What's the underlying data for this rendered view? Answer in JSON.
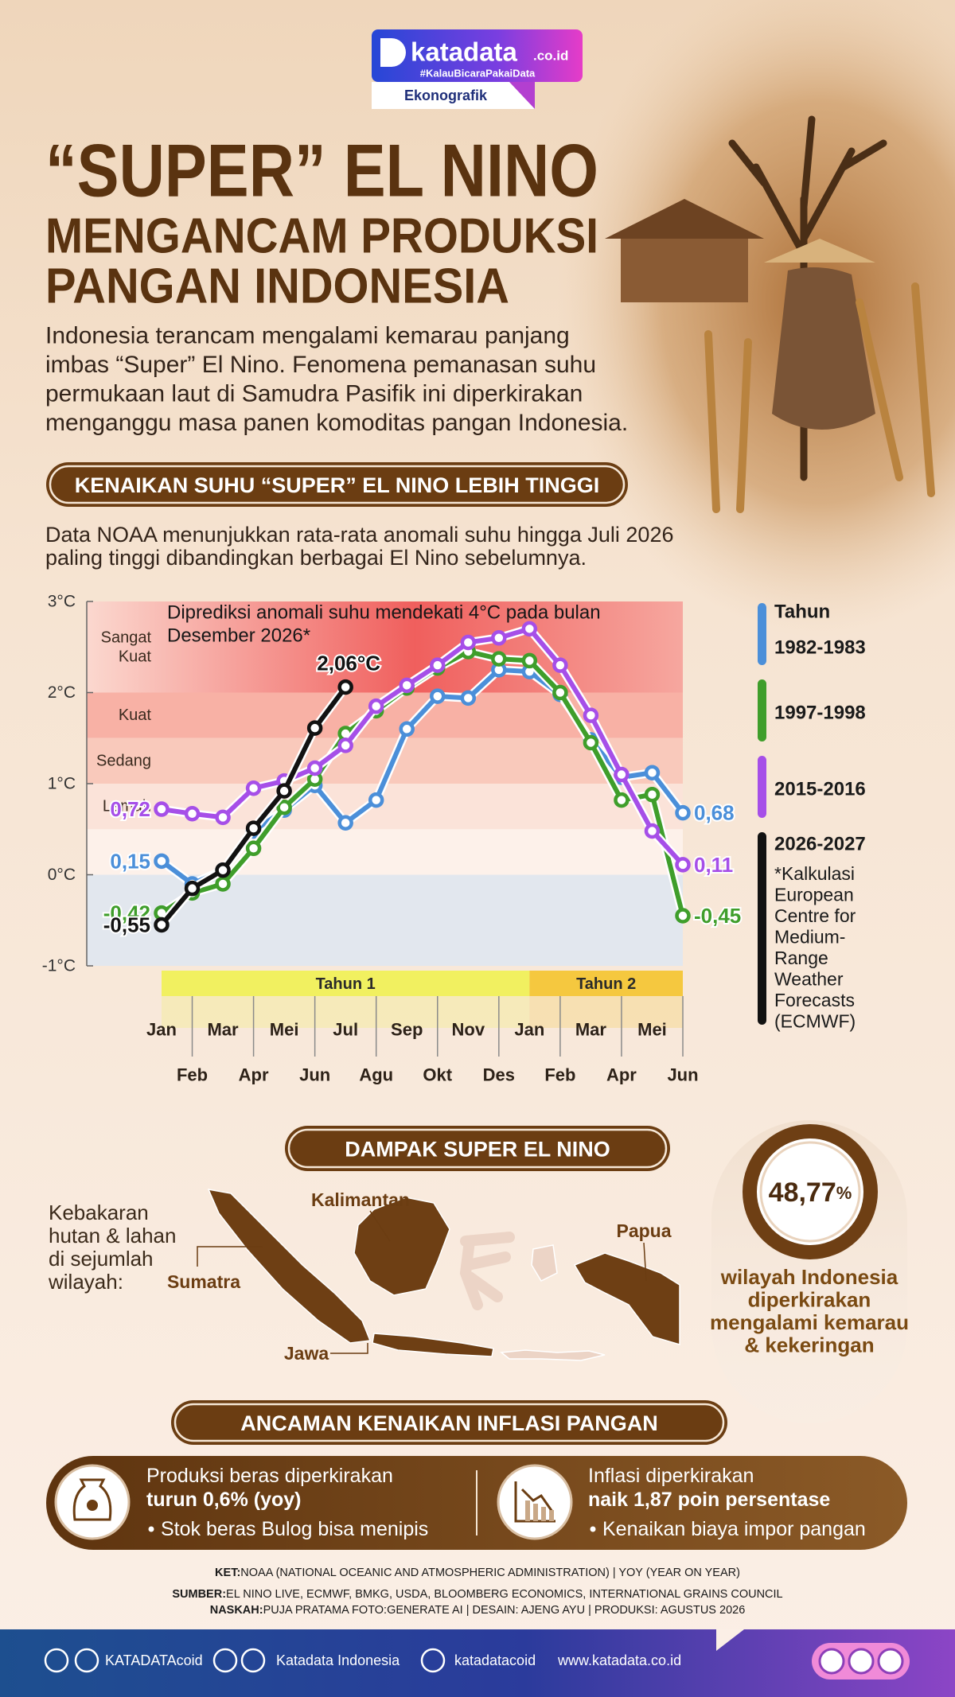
{
  "logo": {
    "brand": "katadata",
    "domain": ".co.id",
    "tagline": "#KalauBicaraPakaiData",
    "section": "Ekonografik"
  },
  "header": {
    "title": "“SUPER” EL NINO",
    "subtitle_lines": [
      "MENGANCAM PRODUKSI",
      "PANGAN INDONESIA"
    ],
    "intro_lines": [
      "Indonesia terancam mengalami kemarau panjang",
      "imbas “Super” El Nino. Fenomena pemanasan suhu",
      "permukaan laut di Samudra Pasifik ini diperkirakan",
      "menganggu masa panen komoditas pangan Indonesia."
    ]
  },
  "section1": {
    "heading": "KENAIKAN SUHU “SUPER” EL NINO LEBIH TINGGI",
    "description_lines": [
      "Data NOAA menunjukkan rata-rata anomali suhu hingga Juli 2026",
      "paling tinggi  dibandingkan berbagai El Nino sebelumnya."
    ]
  },
  "chart_data": {
    "type": "line",
    "annotation_lines": [
      "Diprediksi anomali suhu mendekati 4°C pada bulan",
      "Desember 2026*"
    ],
    "categories": [
      "Jan",
      "Feb",
      "Mar",
      "Apr",
      "Mei",
      "Jun",
      "Jul",
      "Agu",
      "Sep",
      "Okt",
      "Nov",
      "Des",
      "Jan",
      "Feb",
      "Mar",
      "Apr",
      "Mei",
      "Jun"
    ],
    "periods": [
      "Tahun 1",
      "Tahun 2"
    ],
    "ylim": [
      -1,
      3
    ],
    "yticks": [
      {
        "value": -1,
        "label": "-1°C"
      },
      {
        "value": 0,
        "label": "0°C"
      },
      {
        "value": 1,
        "label": "1°C"
      },
      {
        "value": 2,
        "label": "2°C"
      },
      {
        "value": 3,
        "label": "3°C"
      }
    ],
    "bands": [
      {
        "label_lines": [
          "Sangat",
          "Kuat"
        ],
        "range": [
          2,
          3
        ],
        "color": "#f47a72"
      },
      {
        "label_lines": [
          "Kuat"
        ],
        "range": [
          1.5,
          2
        ],
        "color": "#f8b1a5"
      },
      {
        "label_lines": [
          "Sedang"
        ],
        "range": [
          1,
          1.5
        ],
        "color": "#f9c9bb"
      },
      {
        "label_lines": [
          "Lemah"
        ],
        "range": [
          0.5,
          1
        ],
        "color": "#fbe3d9"
      }
    ],
    "legend_title": "Tahun",
    "series": [
      {
        "name": "1982-1983",
        "color": "#4b8fd9",
        "values": [
          0.15,
          -0.1,
          0.05,
          0.48,
          0.71,
          0.98,
          0.57,
          0.82,
          1.6,
          1.96,
          1.94,
          2.25,
          2.23,
          1.98,
          1.48,
          1.07,
          1.12,
          0.68
        ],
        "value_labels": [
          "0,15",
          null,
          null,
          null,
          null,
          null,
          null,
          null,
          null,
          null,
          null,
          null,
          null,
          null,
          null,
          null,
          null,
          "0,68"
        ]
      },
      {
        "name": "1997-1998",
        "color": "#3f9e2b",
        "values": [
          -0.42,
          -0.2,
          -0.1,
          0.29,
          0.74,
          1.05,
          1.55,
          1.8,
          2.05,
          2.27,
          2.45,
          2.37,
          2.35,
          2.0,
          1.45,
          0.82,
          0.88,
          -0.45
        ],
        "value_labels": [
          "-0,42",
          null,
          null,
          null,
          null,
          null,
          null,
          null,
          null,
          null,
          null,
          null,
          null,
          null,
          null,
          null,
          null,
          "-0,45"
        ]
      },
      {
        "name": "2015-2016",
        "color": "#a64fe8",
        "values": [
          0.72,
          0.67,
          0.63,
          0.95,
          1.03,
          1.17,
          1.42,
          1.85,
          2.08,
          2.3,
          2.55,
          2.6,
          2.7,
          2.3,
          1.75,
          1.1,
          0.48,
          0.11
        ],
        "value_labels": [
          "0,72",
          null,
          null,
          null,
          null,
          null,
          null,
          null,
          null,
          null,
          null,
          null,
          null,
          null,
          null,
          null,
          null,
          "0,11"
        ]
      },
      {
        "name": "2026-2027",
        "color": "#121212",
        "values": [
          -0.55,
          -0.15,
          0.05,
          0.51,
          0.92,
          1.61,
          2.06,
          null,
          null,
          null,
          null,
          null,
          null,
          null,
          null,
          null,
          null,
          null
        ],
        "value_labels": [
          "-0,55",
          null,
          null,
          null,
          null,
          null,
          "2,06°C",
          null,
          null,
          null,
          null,
          null,
          null,
          null,
          null,
          null,
          null,
          null
        ]
      }
    ],
    "footnote_lines": [
      "*Kalkulasi",
      "European",
      "Centre for",
      "Medium-",
      "Range",
      "Weather",
      "Forecasts",
      "(ECMWF)"
    ]
  },
  "section2": {
    "heading": "DAMPAK SUPER EL NINO",
    "fire_lines": [
      "Kebakaran",
      "hutan & lahan",
      "di sejumlah",
      "wilayah:"
    ],
    "regions": {
      "kalimantan": "Kalimantan",
      "papua": "Papua",
      "sumatra": "Sumatra",
      "jawa": "Jawa"
    },
    "share": "48,77",
    "share_unit": "%",
    "drought_lines": [
      "wilayah Indonesia",
      "diperkirakan",
      "mengalami kemarau",
      "& kekeringan"
    ]
  },
  "section3": {
    "heading": "ANCAMAN KENAIKAN INFLASI PANGAN",
    "items": [
      {
        "lines": [
          "Produksi beras diperkirakan",
          "turun 0,6% (yoy)"
        ],
        "bullet": "Stok beras Bulog bisa menipis"
      },
      {
        "lines": [
          "Inflasi diperkirakan",
          "naik 1,87 poin persentase"
        ],
        "bullet": "Kenaikan biaya impor pangan"
      }
    ]
  },
  "footer": {
    "notes": [
      {
        "label": "KET:",
        "text": "NOAA (NATIONAL OCEANIC AND ATMOSPHERIC ADMINISTRATION)  | YOY (YEAR ON YEAR)"
      },
      {
        "label": "SUMBER:",
        "text": "EL NINO LIVE, ECMWF, BMKG, USDA, BLOOMBERG ECONOMICS, INTERNATIONAL GRAINS COUNCIL"
      },
      {
        "label": "NASKAH:",
        "text": "PUJA PRATAMA FOTO:GENERATE AI | DESAIN: AJENG AYU | PRODUKSI: AGUSTUS 2026"
      }
    ],
    "social": [
      "KATADATAcoid",
      "Katadata Indonesia",
      "katadatacoid",
      "www.katadata.co.id"
    ]
  }
}
